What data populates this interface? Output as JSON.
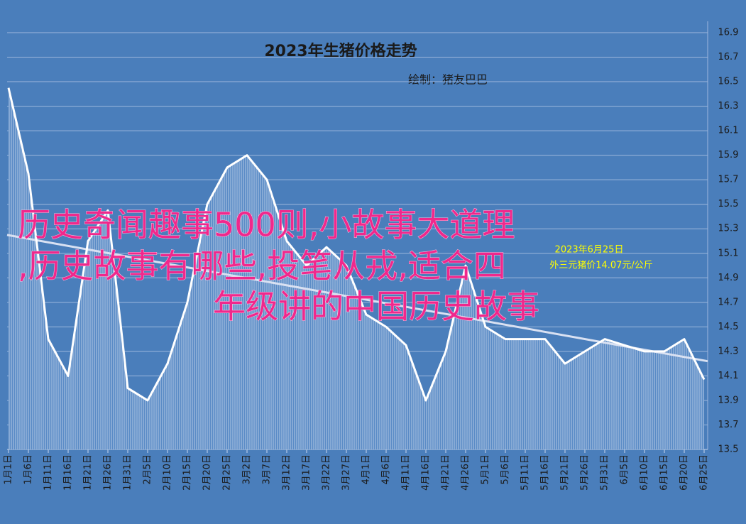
{
  "chart_data": {
    "type": "line",
    "title": "2023年生猪价格走势",
    "subtitle": "绘制：猪友巴巴",
    "categories": [
      "1月1日",
      "1月6日",
      "1月11日",
      "1月16日",
      "1月21日",
      "1月26日",
      "1月31日",
      "2月5日",
      "2月10日",
      "2月15日",
      "2月20日",
      "2月25日",
      "3月2日",
      "3月7日",
      "3月12日",
      "3月17日",
      "3月22日",
      "3月27日",
      "4月1日",
      "4月6日",
      "4月11日",
      "4月16日",
      "4月21日",
      "4月26日",
      "5月1日",
      "5月6日",
      "5月11日",
      "5月16日",
      "5月21日",
      "5月26日",
      "5月31日",
      "6月5日",
      "6月10日",
      "6月15日",
      "6月20日",
      "6月25日"
    ],
    "values": [
      16.45,
      15.75,
      14.4,
      14.1,
      15.2,
      15.45,
      14.0,
      13.9,
      14.2,
      14.7,
      15.5,
      15.8,
      15.9,
      15.7,
      15.2,
      15.0,
      15.15,
      15.0,
      14.6,
      14.5,
      14.35,
      13.9,
      14.3,
      15.0,
      14.5,
      14.4,
      14.4,
      14.4,
      14.2,
      14.3,
      14.4,
      14.35,
      14.3,
      14.3,
      14.4,
      14.07
    ],
    "color": "#ffffff",
    "trend": {
      "start": 15.25,
      "end": 14.22,
      "color": "#d9e1f2"
    },
    "ylim": [
      13.5,
      16.9
    ],
    "yticks": [
      13.5,
      13.7,
      13.9,
      14.1,
      14.3,
      14.5,
      14.7,
      14.9,
      15.1,
      15.3,
      15.5,
      15.7,
      15.9,
      16.1,
      16.3,
      16.5,
      16.7,
      16.9
    ],
    "grid": true,
    "annotation": [
      "2023年6月25日",
      "外三元猪价14.07元/公斤"
    ],
    "overlay": [
      "历史奇闻趣事500则,小故事大道理",
      ",历史故事有哪些,投笔从戎,适合四",
      "年级讲的中国历史故事"
    ]
  }
}
